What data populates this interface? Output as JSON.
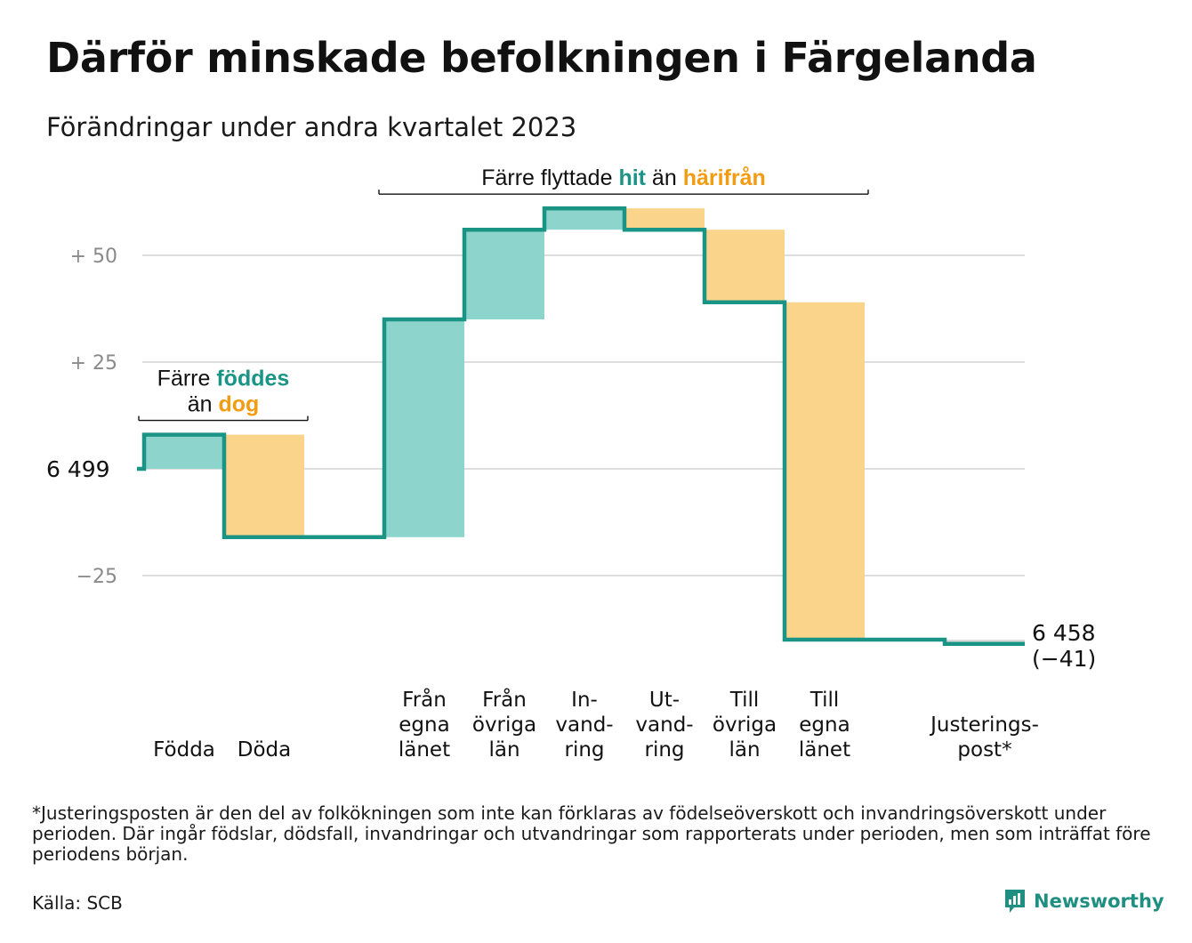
{
  "title": "Därför minskade befolkningen i Färgelanda",
  "subtitle": "Förändringar under andra kvartalet 2023",
  "colors": {
    "increase": "#1a9485",
    "increase_fill": "#8dd5cc",
    "decrease": "#f39c12",
    "decrease_fill": "#fad48b",
    "grid": "#dedede",
    "adjust_fill": "#d9d9d9"
  },
  "chart_data": {
    "type": "waterfall",
    "start": {
      "label": "6  499",
      "value": 6499
    },
    "end": {
      "label_lines": [
        "6 458",
        "(−41)"
      ],
      "value": 6458,
      "change": -41
    },
    "ylim": [
      -41,
      61
    ],
    "yticks": [
      {
        "value": 50,
        "label": "+  50"
      },
      {
        "value": 25,
        "label": "+  25"
      },
      {
        "value": 0,
        "label": ""
      },
      {
        "value": -25,
        "label": "−25"
      }
    ],
    "grid": true,
    "steps": [
      {
        "label_lines": [
          "Födda"
        ],
        "change": 8,
        "kind": "increase"
      },
      {
        "label_lines": [
          "Döda"
        ],
        "change": -24,
        "kind": "decrease"
      },
      {
        "label_lines": [
          ""
        ],
        "change": 0,
        "kind": "none"
      },
      {
        "label_lines": [
          "Från",
          "egna",
          "länet"
        ],
        "change": 51,
        "kind": "increase"
      },
      {
        "label_lines": [
          "Från",
          "övriga",
          "län"
        ],
        "change": 21,
        "kind": "increase"
      },
      {
        "label_lines": [
          "In-",
          "vand-",
          "ring"
        ],
        "change": 5,
        "kind": "increase"
      },
      {
        "label_lines": [
          "Ut-",
          "vand-",
          "ring"
        ],
        "change": -5,
        "kind": "decrease"
      },
      {
        "label_lines": [
          "Till",
          "övriga",
          "län"
        ],
        "change": -17,
        "kind": "decrease"
      },
      {
        "label_lines": [
          "Till",
          "egna",
          "länet"
        ],
        "change": -79,
        "kind": "decrease"
      },
      {
        "label_lines": [
          ""
        ],
        "change": 0,
        "kind": "none"
      },
      {
        "label_lines": [
          "Justerings-",
          "post*"
        ],
        "change": -1,
        "kind": "adjustment"
      }
    ],
    "annotations": [
      {
        "name": "birth-annotation",
        "from_step": 0,
        "to_step": 1,
        "lines": [
          [
            {
              "text": "Färre ",
              "style": "plain"
            },
            {
              "text": "föddes",
              "style": "increase"
            }
          ],
          [
            {
              "text": "än ",
              "style": "plain"
            },
            {
              "text": "dog",
              "style": "decrease"
            }
          ]
        ]
      },
      {
        "name": "migration-annotation",
        "from_step": 3,
        "to_step": 8,
        "lines": [
          [
            {
              "text": "Färre flyttade ",
              "style": "plain"
            },
            {
              "text": "hit",
              "style": "increase"
            },
            {
              "text": " än ",
              "style": "plain"
            },
            {
              "text": "härifrån",
              "style": "decrease"
            }
          ]
        ]
      }
    ]
  },
  "footnote": "*Justeringsposten är den del av folkökningen som inte kan förklaras av födelseöverskott och invandringsöverskott under perioden. Där ingår födslar, dödsfall, invandringar och utvandringar som rapporterats under perioden, men som inträffat före periodens början.",
  "source": "Källa: SCB",
  "brand": {
    "name": "Newsworthy",
    "icon": "newsworthy-logo-icon"
  }
}
